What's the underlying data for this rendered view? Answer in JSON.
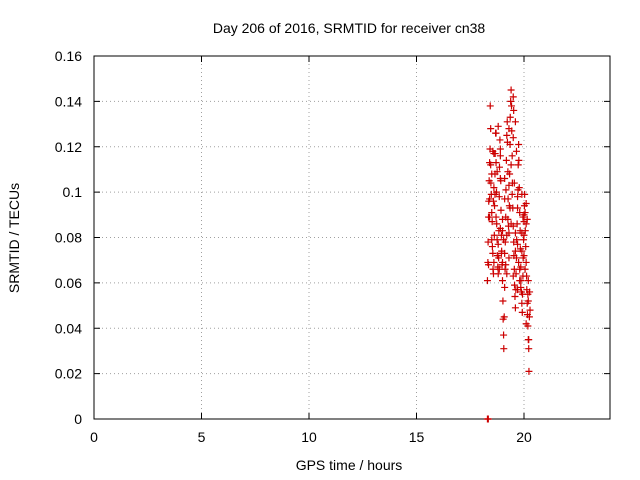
{
  "chart_data": {
    "type": "scatter",
    "title": "Day 206 of 2016, SRMTID for receiver cn38",
    "xlabel": "GPS time / hours",
    "ylabel": "SRMTID / TECUs",
    "xlim": [
      0,
      24
    ],
    "ylim": [
      0,
      0.16
    ],
    "x_ticks": [
      0,
      5,
      10,
      15,
      20
    ],
    "x_tick_labels": [
      "0",
      "5",
      "10",
      "15",
      "20"
    ],
    "y_ticks": [
      0,
      0.02,
      0.04,
      0.06,
      0.08,
      0.1,
      0.12,
      0.14,
      0.16
    ],
    "y_tick_labels": [
      "0",
      "0.02",
      "0.04",
      "0.06",
      "0.08",
      "0.1",
      "0.12",
      "0.14",
      "0.16"
    ],
    "grid": true,
    "marker": "+",
    "color": "#cc0000",
    "series": [
      {
        "name": "SRMTID",
        "points": [
          [
            18.3,
            0.0
          ],
          [
            18.32,
            0.0
          ],
          [
            18.34,
            0.0
          ],
          [
            18.3,
            0.061
          ],
          [
            18.32,
            0.069
          ],
          [
            18.33,
            0.078
          ],
          [
            18.35,
            0.089
          ],
          [
            18.36,
            0.096
          ],
          [
            18.38,
            0.105
          ],
          [
            18.4,
            0.113
          ],
          [
            18.42,
            0.119
          ],
          [
            18.43,
            0.138
          ],
          [
            18.45,
            0.128
          ],
          [
            18.46,
            0.104
          ],
          [
            18.48,
            0.099
          ],
          [
            18.5,
            0.091
          ],
          [
            18.52,
            0.087
          ],
          [
            18.53,
            0.076
          ],
          [
            18.55,
            0.073
          ],
          [
            18.56,
            0.066
          ],
          [
            18.58,
            0.064
          ],
          [
            18.6,
            0.069
          ],
          [
            18.62,
            0.081
          ],
          [
            18.63,
            0.094
          ],
          [
            18.65,
            0.108
          ],
          [
            18.66,
            0.117
          ],
          [
            18.68,
            0.126
          ],
          [
            18.7,
            0.113
          ],
          [
            18.72,
            0.1
          ],
          [
            18.73,
            0.086
          ],
          [
            18.75,
            0.079
          ],
          [
            18.76,
            0.072
          ],
          [
            18.78,
            0.067
          ],
          [
            18.8,
            0.064
          ],
          [
            18.82,
            0.071
          ],
          [
            18.83,
            0.083
          ],
          [
            18.85,
            0.098
          ],
          [
            18.86,
            0.111
          ],
          [
            18.88,
            0.123
          ],
          [
            18.9,
            0.119
          ],
          [
            18.92,
            0.105
          ],
          [
            18.93,
            0.092
          ],
          [
            18.95,
            0.081
          ],
          [
            18.96,
            0.074
          ],
          [
            18.98,
            0.068
          ],
          [
            19.0,
            0.061
          ],
          [
            19.02,
            0.052
          ],
          [
            19.03,
            0.044
          ],
          [
            19.05,
            0.037
          ],
          [
            19.06,
            0.031
          ],
          [
            19.08,
            0.045
          ],
          [
            19.1,
            0.058
          ],
          [
            19.12,
            0.066
          ],
          [
            19.13,
            0.078
          ],
          [
            19.15,
            0.089
          ],
          [
            19.16,
            0.101
          ],
          [
            19.18,
            0.114
          ],
          [
            19.2,
            0.125
          ],
          [
            19.22,
            0.131
          ],
          [
            19.23,
            0.122
          ],
          [
            19.25,
            0.109
          ],
          [
            19.26,
            0.097
          ],
          [
            19.28,
            0.085
          ],
          [
            19.3,
            0.082
          ],
          [
            19.32,
            0.094
          ],
          [
            19.33,
            0.108
          ],
          [
            19.35,
            0.121
          ],
          [
            19.36,
            0.133
          ],
          [
            19.38,
            0.14
          ],
          [
            19.4,
            0.145
          ],
          [
            19.42,
            0.138
          ],
          [
            19.43,
            0.127
          ],
          [
            19.45,
            0.116
          ],
          [
            19.46,
            0.104
          ],
          [
            19.48,
            0.093
          ],
          [
            19.5,
            0.085
          ],
          [
            19.52,
            0.078
          ],
          [
            19.53,
            0.072
          ],
          [
            19.55,
            0.066
          ],
          [
            19.56,
            0.059
          ],
          [
            19.58,
            0.054
          ],
          [
            19.6,
            0.049
          ],
          [
            19.62,
            0.057
          ],
          [
            19.63,
            0.064
          ],
          [
            19.65,
            0.071
          ],
          [
            19.66,
            0.079
          ],
          [
            19.68,
            0.086
          ],
          [
            19.7,
            0.093
          ],
          [
            19.72,
            0.101
          ],
          [
            19.73,
            0.112
          ],
          [
            19.75,
            0.121
          ],
          [
            19.76,
            0.114
          ],
          [
            19.78,
            0.102
          ],
          [
            19.8,
            0.091
          ],
          [
            19.82,
            0.083
          ],
          [
            19.83,
            0.075
          ],
          [
            19.85,
            0.067
          ],
          [
            19.86,
            0.061
          ],
          [
            19.88,
            0.056
          ],
          [
            19.9,
            0.051
          ],
          [
            19.92,
            0.047
          ],
          [
            19.93,
            0.055
          ],
          [
            19.95,
            0.063
          ],
          [
            19.96,
            0.071
          ],
          [
            19.98,
            0.079
          ],
          [
            20.0,
            0.087
          ],
          [
            20.02,
            0.094
          ],
          [
            20.03,
            0.099
          ],
          [
            20.05,
            0.091
          ],
          [
            20.06,
            0.083
          ],
          [
            20.08,
            0.076
          ],
          [
            20.1,
            0.069
          ],
          [
            20.12,
            0.063
          ],
          [
            20.13,
            0.057
          ],
          [
            20.15,
            0.051
          ],
          [
            20.16,
            0.046
          ],
          [
            20.18,
            0.041
          ],
          [
            20.2,
            0.035
          ],
          [
            20.22,
            0.031
          ],
          [
            20.23,
            0.021
          ],
          [
            20.25,
            0.045
          ],
          [
            20.26,
            0.056
          ],
          [
            20.28,
            0.048
          ],
          [
            18.6,
            0.117
          ],
          [
            18.7,
            0.126
          ],
          [
            18.8,
            0.129
          ],
          [
            18.9,
            0.116
          ],
          [
            19.0,
            0.069
          ],
          [
            19.1,
            0.073
          ],
          [
            19.2,
            0.081
          ],
          [
            19.3,
            0.103
          ],
          [
            19.4,
            0.112
          ],
          [
            19.5,
            0.124
          ],
          [
            19.6,
            0.131
          ],
          [
            19.7,
            0.077
          ],
          [
            19.8,
            0.066
          ],
          [
            19.9,
            0.099
          ],
          [
            20.0,
            0.072
          ],
          [
            20.1,
            0.086
          ],
          [
            20.2,
            0.061
          ],
          [
            18.4,
            0.097
          ],
          [
            18.5,
            0.108
          ],
          [
            18.6,
            0.102
          ],
          [
            18.7,
            0.089
          ],
          [
            18.8,
            0.077
          ],
          [
            18.9,
            0.084
          ],
          [
            19.0,
            0.088
          ],
          [
            19.1,
            0.097
          ],
          [
            19.2,
            0.064
          ],
          [
            19.3,
            0.071
          ],
          [
            19.4,
            0.086
          ],
          [
            19.5,
            0.063
          ],
          [
            19.6,
            0.082
          ],
          [
            19.7,
            0.057
          ],
          [
            19.8,
            0.061
          ],
          [
            19.9,
            0.074
          ],
          [
            20.0,
            0.081
          ],
          [
            20.1,
            0.095
          ],
          [
            20.2,
            0.052
          ],
          [
            18.45,
            0.112
          ],
          [
            18.55,
            0.118
          ],
          [
            18.65,
            0.099
          ],
          [
            18.75,
            0.109
          ],
          [
            18.85,
            0.066
          ],
          [
            18.95,
            0.073
          ],
          [
            19.05,
            0.079
          ],
          [
            19.15,
            0.068
          ],
          [
            19.25,
            0.088
          ],
          [
            19.35,
            0.093
          ],
          [
            19.45,
            0.099
          ],
          [
            19.55,
            0.104
          ],
          [
            19.65,
            0.118
          ],
          [
            19.75,
            0.069
          ],
          [
            19.85,
            0.058
          ],
          [
            19.95,
            0.089
          ],
          [
            20.05,
            0.066
          ],
          [
            20.15,
            0.088
          ],
          [
            18.4,
            0.089
          ],
          [
            18.5,
            0.079
          ],
          [
            19.0,
            0.083
          ],
          [
            19.5,
            0.142
          ],
          [
            19.52,
            0.136
          ],
          [
            20.1,
            0.042
          ],
          [
            20.22,
            0.035
          ],
          [
            18.35,
            0.068
          ],
          [
            18.9,
            0.106
          ],
          [
            19.3,
            0.128
          ],
          [
            19.6,
            0.074
          ],
          [
            19.9,
            0.082
          ],
          [
            20.0,
            0.09
          ],
          [
            20.18,
            0.055
          ],
          [
            18.58,
            0.096
          ],
          [
            19.1,
            0.106
          ],
          [
            19.7,
            0.098
          ]
        ]
      }
    ]
  }
}
